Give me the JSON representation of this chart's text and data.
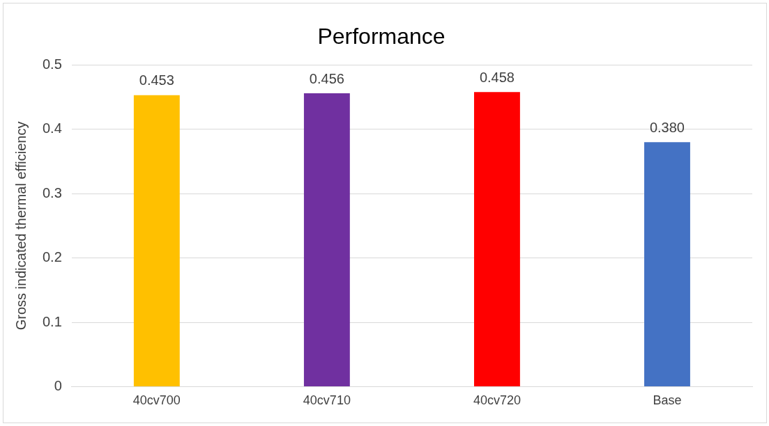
{
  "chart_data": {
    "type": "bar",
    "title": "Performance",
    "ylabel": "Gross indicated thermal efficiency",
    "categories": [
      "40cv700",
      "40cv710",
      "40cv720",
      "Base"
    ],
    "values": [
      0.453,
      0.456,
      0.458,
      0.38
    ],
    "colors": [
      "#ffc000",
      "#7030a0",
      "#ff0000",
      "#4472c4"
    ],
    "value_labels": [
      "0.453",
      "0.456",
      "0.458",
      "0.380"
    ],
    "ylim": [
      0,
      0.5
    ],
    "yticks": [
      0,
      0.1,
      0.2,
      0.3,
      0.4,
      0.5
    ],
    "grid": "y",
    "legend": false
  }
}
